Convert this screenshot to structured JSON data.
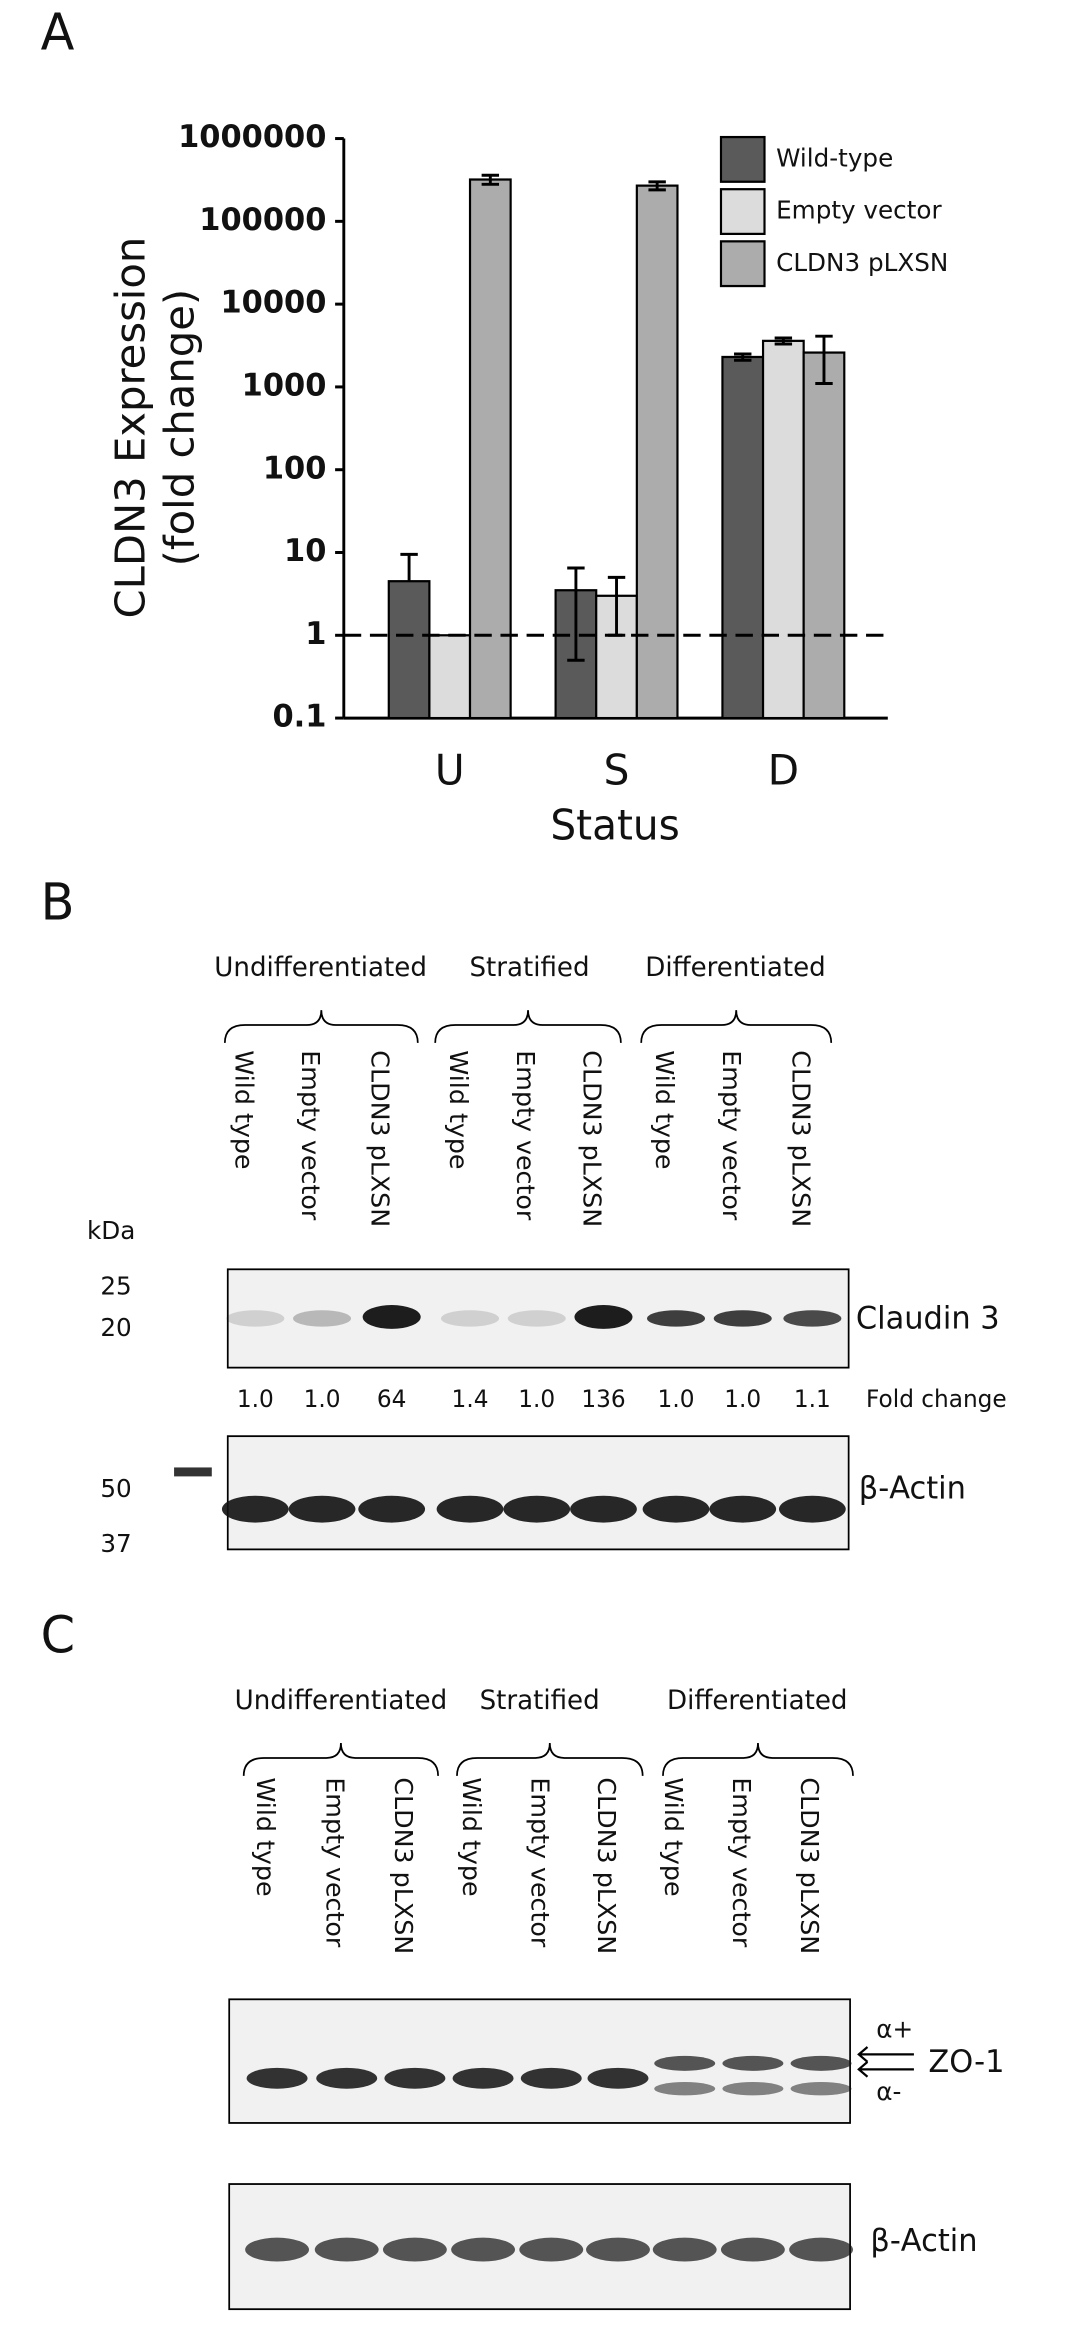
{
  "chart_data": {
    "type": "bar",
    "panel_label": "A",
    "ylabel": [
      "CLDN3 Expression",
      "(fold change)"
    ],
    "xlabel": "Status",
    "categories": [
      "U",
      "S",
      "D"
    ],
    "log_scale": true,
    "ylim": [
      0.1,
      1000000
    ],
    "yticks": [
      0.1,
      1,
      10,
      100,
      1000,
      10000,
      100000,
      1000000
    ],
    "reference_line": 1,
    "legend": "top-right",
    "series": [
      {
        "name": "Wild-type",
        "color": "#5a5a5a",
        "values": [
          4.5,
          3.5,
          2300
        ],
        "errors": [
          5,
          3,
          200
        ]
      },
      {
        "name": "Empty vector",
        "color": "#dcdcdc",
        "values": [
          1,
          3,
          3600
        ],
        "errors": [
          0,
          2,
          300
        ]
      },
      {
        "name": "CLDN3 pLXSN",
        "color": "#acacac",
        "values": [
          320000,
          270000,
          2600
        ],
        "errors": [
          40000,
          30000,
          1500
        ]
      }
    ]
  },
  "panel_b": {
    "label": "B",
    "groups": [
      "Undifferentiated",
      "Stratified",
      "Differentiated"
    ],
    "lanes": [
      "Wild type",
      "Empty vector",
      "CLDN3 pLXSN",
      "Wild type",
      "Empty vector",
      "CLDN3 pLXSN",
      "Wild type",
      "Empty vector",
      "CLDN3 pLXSN"
    ],
    "kda": "kDa",
    "blot1_markers": [
      "25",
      "20"
    ],
    "blot1_name": "Claudin 3",
    "fold_changes": [
      "1.0",
      "1.0",
      "64",
      "1.4",
      "1.0",
      "136",
      "1.0",
      "1.0",
      "1.1"
    ],
    "fold_change_label": "Fold change",
    "blot2_markers": [
      "50",
      "37"
    ],
    "blot2_name": "β-Actin"
  },
  "panel_c": {
    "label": "C",
    "groups": [
      "Undifferentiated",
      "Stratified",
      "Differentiated"
    ],
    "lanes": [
      "Wild type",
      "Empty vector",
      "CLDN3 pLXSN",
      "Wild type",
      "Empty vector",
      "CLDN3 pLXSN",
      "Wild type",
      "Empty vector",
      "CLDN3 pLXSN"
    ],
    "blot1_name": "ZO-1",
    "alpha_plus": "α+",
    "alpha_minus": "α-",
    "blot2_name": "β-Actin"
  }
}
